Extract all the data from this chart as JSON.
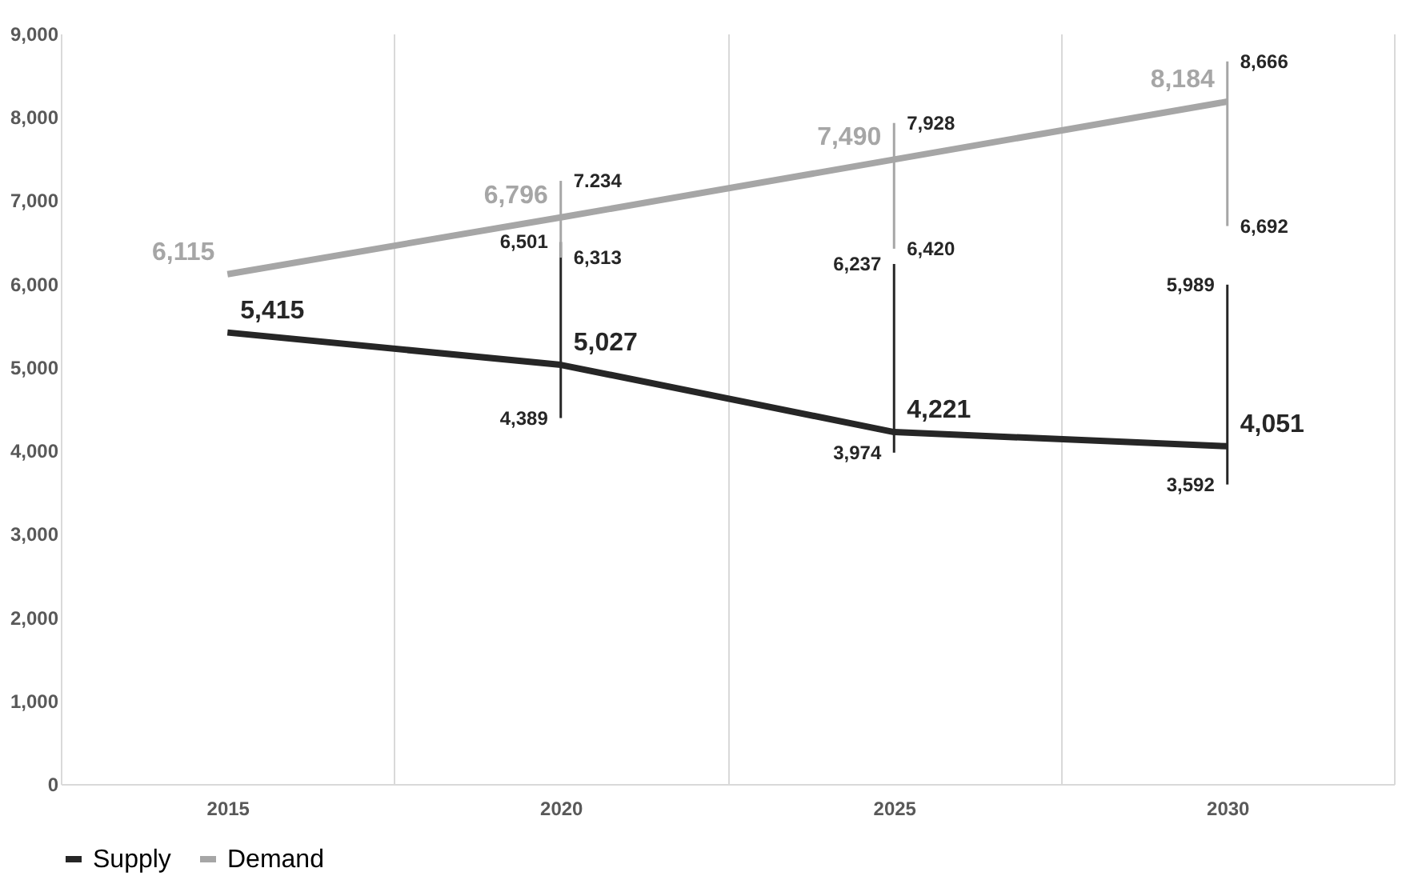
{
  "chart_data": {
    "type": "line",
    "categories": [
      "2015",
      "2020",
      "2025",
      "2030"
    ],
    "series": [
      {
        "name": "Supply",
        "color": "#262626",
        "values": [
          5415,
          5027,
          4221,
          4051
        ],
        "value_labels": [
          "5,415",
          "5,027",
          "4,221",
          "4,051"
        ],
        "errors": [
          null,
          [
            4389,
            6501
          ],
          [
            3974,
            6237
          ],
          [
            3592,
            5989
          ]
        ]
      },
      {
        "name": "Demand",
        "color": "#a6a6a6",
        "values": [
          6115,
          6796,
          7490,
          8184
        ],
        "value_labels": [
          "6,115",
          "6,796",
          "7,490",
          "8,184"
        ],
        "errors": [
          null,
          [
            6313,
            7234
          ],
          [
            6420,
            7928
          ],
          [
            6692,
            8666
          ]
        ]
      }
    ],
    "annotations": [
      {
        "text": "4,389",
        "x": "2020",
        "y": 4389
      },
      {
        "text": "6,501",
        "x": "2020",
        "y": 6501
      },
      {
        "text": "3,974",
        "x": "2025",
        "y": 3974
      },
      {
        "text": "6,237",
        "x": "2025",
        "y": 6237
      },
      {
        "text": "3,592",
        "x": "2030",
        "y": 3592
      },
      {
        "text": "5,989",
        "x": "2030",
        "y": 5989
      },
      {
        "text": "6,313",
        "x": "2020",
        "y": 6313
      },
      {
        "text": "7.234",
        "x": "2020",
        "y": 7234
      },
      {
        "text": "6,420",
        "x": "2025",
        "y": 6420
      },
      {
        "text": "7,928",
        "x": "2025",
        "y": 7928
      },
      {
        "text": "6,692",
        "x": "2030",
        "y": 6692
      },
      {
        "text": "8,666",
        "x": "2030",
        "y": 8666
      }
    ],
    "ylim": [
      0,
      9000
    ],
    "yticks": [
      0,
      {
        "value": 1000,
        "label": "1,000"
      },
      {
        "value": 2000,
        "label": "2,000"
      },
      {
        "value": 3000,
        "label": "3,000"
      },
      {
        "value": 4000,
        "label": "4,000"
      },
      {
        "value": 5000,
        "label": "5,000"
      },
      {
        "value": 6000,
        "label": "6,000"
      },
      {
        "value": 7000,
        "label": "7,000"
      },
      {
        "value": 8000,
        "label": "8,000"
      },
      {
        "value": 9000,
        "label": "9,000"
      }
    ],
    "grid": "x",
    "legend": "bottom",
    "marker": "none",
    "line_style": "solid"
  }
}
